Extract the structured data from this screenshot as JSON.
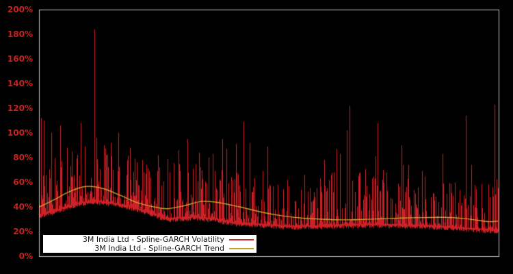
{
  "figure": {
    "background": "#000000",
    "plot_border_color": "#c4c4c4"
  },
  "chart_data": {
    "type": "line",
    "title": "",
    "subtitle": "",
    "xlabel": "",
    "ylabel": "",
    "x_tick_labels_visible": false,
    "ylim": [
      0,
      200
    ],
    "grid": false,
    "legend_position": "inside-bottom-left",
    "y_axis": {
      "label_color": "#c8211e",
      "ticks": [
        {
          "label": "0%",
          "value": 0
        },
        {
          "label": "20%",
          "value": 20
        },
        {
          "label": "40%",
          "value": 40
        },
        {
          "label": "60%",
          "value": 60
        },
        {
          "label": "80%",
          "value": 80
        },
        {
          "label": "100%",
          "value": 100
        },
        {
          "label": "120%",
          "value": 120
        },
        {
          "label": "140%",
          "value": 140
        },
        {
          "label": "160%",
          "value": 160
        },
        {
          "label": "180%",
          "value": 180
        },
        {
          "label": "200%",
          "value": 200
        }
      ]
    },
    "series": [
      {
        "name": "3M India Ltd - Spline-GARCH Volatility",
        "color": "#cc2127",
        "style": "dense-spikes",
        "n_columns": 671,
        "baseline_pct": [
          [
            0.0,
            34.0
          ],
          [
            0.033,
            37.5
          ],
          [
            0.078,
            43.0
          ],
          [
            0.115,
            45.5
          ],
          [
            0.152,
            44.0
          ],
          [
            0.19,
            41.5
          ],
          [
            0.234,
            36.5
          ],
          [
            0.279,
            31.0
          ],
          [
            0.339,
            32.5
          ],
          [
            0.384,
            30.5
          ],
          [
            0.428,
            27.5
          ],
          [
            0.481,
            26.5
          ],
          [
            0.54,
            25.0
          ],
          [
            0.6,
            25.0
          ],
          [
            0.66,
            26.0
          ],
          [
            0.719,
            26.5
          ],
          [
            0.779,
            26.0
          ],
          [
            0.839,
            25.5
          ],
          [
            0.899,
            24.0
          ],
          [
            0.958,
            22.5
          ],
          [
            1.0,
            22.0
          ]
        ],
        "typical_peak_pct": [
          [
            0.0,
            72
          ],
          [
            0.05,
            85
          ],
          [
            0.12,
            92
          ],
          [
            0.19,
            82
          ],
          [
            0.25,
            74
          ],
          [
            0.3,
            80
          ],
          [
            0.36,
            76
          ],
          [
            0.43,
            70
          ],
          [
            0.49,
            62
          ],
          [
            0.55,
            56
          ],
          [
            0.62,
            66
          ],
          [
            0.68,
            75
          ],
          [
            0.74,
            72
          ],
          [
            0.79,
            66
          ],
          [
            0.85,
            68
          ],
          [
            0.9,
            60
          ],
          [
            0.96,
            58
          ],
          [
            1.0,
            64
          ]
        ],
        "major_spikes_pct": [
          [
            0.003,
            112
          ],
          [
            0.009,
            110
          ],
          [
            0.025,
            100
          ],
          [
            0.045,
            106
          ],
          [
            0.06,
            88
          ],
          [
            0.09,
            108
          ],
          [
            0.119,
            184
          ],
          [
            0.124,
            96
          ],
          [
            0.14,
            90
          ],
          [
            0.155,
            92
          ],
          [
            0.172,
            100
          ],
          [
            0.197,
            88
          ],
          [
            0.224,
            78
          ],
          [
            0.258,
            82
          ],
          [
            0.279,
            79
          ],
          [
            0.303,
            86
          ],
          [
            0.322,
            95
          ],
          [
            0.348,
            84
          ],
          [
            0.369,
            80
          ],
          [
            0.378,
            83
          ],
          [
            0.399,
            95
          ],
          [
            0.407,
            87
          ],
          [
            0.428,
            91
          ],
          [
            0.445,
            109
          ],
          [
            0.458,
            92
          ],
          [
            0.487,
            69
          ],
          [
            0.497,
            89
          ],
          [
            0.54,
            62
          ],
          [
            0.578,
            66
          ],
          [
            0.621,
            78
          ],
          [
            0.637,
            67
          ],
          [
            0.648,
            87
          ],
          [
            0.655,
            83
          ],
          [
            0.67,
            102
          ],
          [
            0.676,
            122
          ],
          [
            0.699,
            68
          ],
          [
            0.71,
            66
          ],
          [
            0.733,
            81
          ],
          [
            0.737,
            108
          ],
          [
            0.749,
            70
          ],
          [
            0.757,
            68
          ],
          [
            0.79,
            90
          ],
          [
            0.793,
            74
          ],
          [
            0.804,
            74
          ],
          [
            0.834,
            69
          ],
          [
            0.879,
            83
          ],
          [
            0.93,
            114
          ],
          [
            0.942,
            74
          ],
          [
            0.993,
            123
          ]
        ],
        "noise": {
          "seed": 42,
          "texture_power": 3.2,
          "burst_probability": 0.1,
          "burst_floor": 0.45,
          "base_fuzz": 2.6
        }
      },
      {
        "name": "3M India Ltd - Spline-GARCH Trend",
        "color": "#c9a22d",
        "style": "smooth-line",
        "points_pct": [
          [
            0.0,
            40.0
          ],
          [
            0.033,
            46.0
          ],
          [
            0.063,
            52.0
          ],
          [
            0.1,
            56.5
          ],
          [
            0.137,
            55.0
          ],
          [
            0.175,
            49.5
          ],
          [
            0.212,
            43.5
          ],
          [
            0.249,
            40.0
          ],
          [
            0.279,
            38.5
          ],
          [
            0.316,
            41.0
          ],
          [
            0.354,
            44.5
          ],
          [
            0.391,
            43.5
          ],
          [
            0.436,
            40.0
          ],
          [
            0.481,
            36.0
          ],
          [
            0.525,
            33.0
          ],
          [
            0.57,
            31.0
          ],
          [
            0.615,
            30.0
          ],
          [
            0.66,
            29.5
          ],
          [
            0.704,
            29.8
          ],
          [
            0.749,
            30.4
          ],
          [
            0.793,
            31.0
          ],
          [
            0.838,
            31.3
          ],
          [
            0.882,
            31.5
          ],
          [
            0.928,
            30.5
          ],
          [
            0.958,
            29.0
          ],
          [
            0.981,
            28.0
          ],
          [
            1.0,
            28.5
          ]
        ]
      }
    ],
    "legend": {
      "background": "#ffffff",
      "text_color": "#141414",
      "items": [
        {
          "label": "3M India Ltd - Spline-GARCH Volatility",
          "color": "#cc2127"
        },
        {
          "label": "3M India Ltd - Spline-GARCH Trend",
          "color": "#c9a22d"
        }
      ]
    }
  }
}
